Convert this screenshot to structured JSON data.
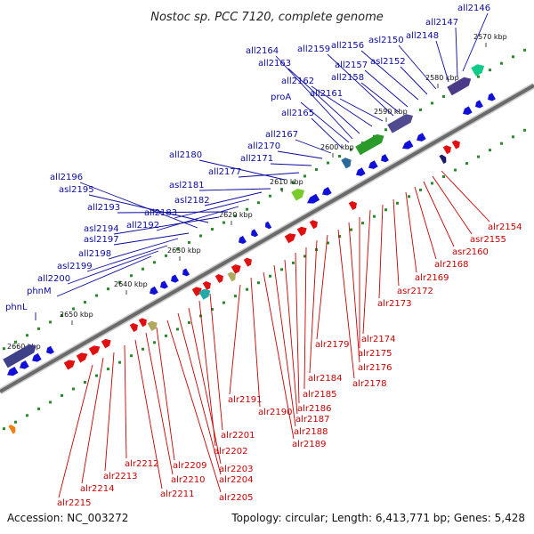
{
  "title": "Nostoc sp. PCC 7120, complete genome",
  "footer": {
    "accession": "Accession: NC_003272",
    "summary": "Topology: circular; Length: 6,413,771 bp; Genes: 5,428"
  },
  "colors": {
    "minus_strand": "#1010d8",
    "plus_strand": "#e01010",
    "backbone": "#808080",
    "tick_dots": "#2a8a2a"
  },
  "axis_ticks": [
    "2570 kbp",
    "2580 kbp",
    "2590 kbp",
    "2600 kbp",
    "2610 kbp",
    "2620 kbp",
    "2630 kbp",
    "2640 kbp",
    "2650 kbp",
    "2660 kbp"
  ],
  "minus_strand_genes": [
    "all2146",
    "all2147",
    "all2148",
    "asl2150",
    "asl2152",
    "all2156",
    "all2157",
    "all2158",
    "all2159",
    "all2161",
    "all2162",
    "all2163",
    "all2164",
    "proA",
    "all2165",
    "all2167",
    "all2170",
    "all2171",
    "all2177",
    "all2180",
    "asl2181",
    "asl2182",
    "all2183",
    "all2192",
    "all2193",
    "asl2194",
    "asl2195",
    "all2196",
    "asl2197",
    "all2198",
    "asl2199",
    "all2200",
    "phnM",
    "phnL"
  ],
  "plus_strand_genes": [
    "alr2154",
    "asr2155",
    "asr2160",
    "alr2168",
    "alr2169",
    "asr2172",
    "alr2173",
    "alr2174",
    "alr2175",
    "alr2176",
    "alr2178",
    "alr2179",
    "alr2184",
    "alr2185",
    "alr2186",
    "alr2187",
    "alr2188",
    "alr2189",
    "alr2190",
    "alr2191",
    "alr2201",
    "alr2202",
    "alr2203",
    "alr2204",
    "alr2205",
    "alr2209",
    "alr2210",
    "alr2211",
    "alr2212",
    "alr2213",
    "alr2214",
    "alr2215"
  ]
}
